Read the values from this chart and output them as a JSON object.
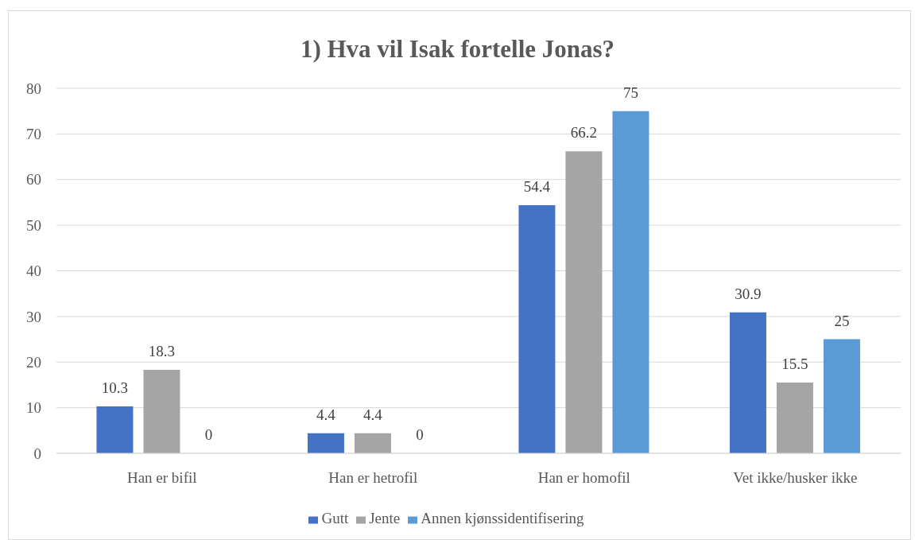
{
  "chart_data": {
    "type": "bar",
    "title": "1) Hva vil Isak fortelle Jonas?",
    "categories": [
      "Han er bifil",
      "Han er hetrofil",
      "Han er homofil",
      "Vet ikke/husker ikke"
    ],
    "series": [
      {
        "name": "Gutt",
        "color": "#4472c4",
        "values": [
          10.3,
          4.4,
          54.4,
          30.9
        ]
      },
      {
        "name": "Jente",
        "color": "#a5a5a5",
        "values": [
          18.3,
          4.4,
          66.2,
          15.5
        ]
      },
      {
        "name": "Annen kjønssidentifisering",
        "color": "#5b9bd5",
        "values": [
          0,
          0,
          75,
          25
        ]
      }
    ],
    "ylim": [
      0,
      80
    ],
    "yticks": [
      0,
      10,
      20,
      30,
      40,
      50,
      60,
      70,
      80
    ],
    "grid": "y",
    "legend": "bottom",
    "data_labels": true
  }
}
